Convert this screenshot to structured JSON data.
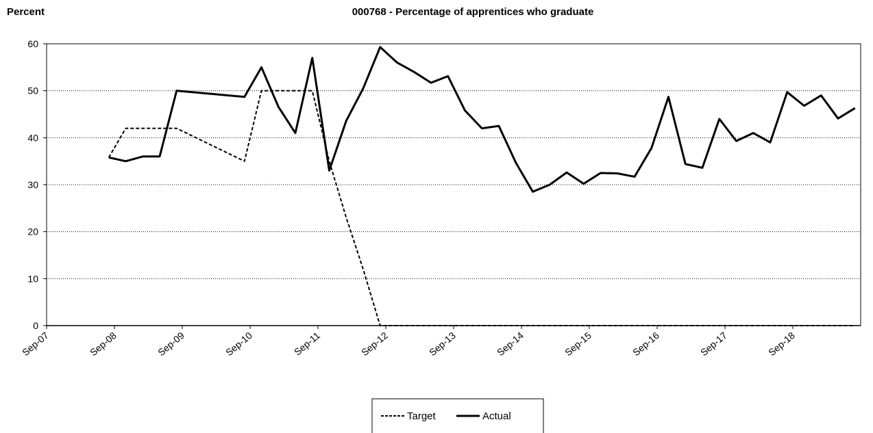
{
  "chart_data": {
    "type": "line",
    "title": "000768 - Percentage of apprentices who graduate",
    "y_label": "Percent",
    "x": [
      "2008-08",
      "2008-11",
      "2009-02",
      "2009-05",
      "2009-08",
      "2010-08",
      "2010-11",
      "2011-02",
      "2011-05",
      "2011-08",
      "2011-11",
      "2012-02",
      "2012-05",
      "2012-08",
      "2012-11",
      "2013-02",
      "2013-05",
      "2013-08",
      "2013-11",
      "2014-02",
      "2014-05",
      "2014-08",
      "2014-11",
      "2015-02",
      "2015-05",
      "2015-08",
      "2015-11",
      "2016-02",
      "2016-05",
      "2016-08",
      "2016-11",
      "2017-02",
      "2017-05",
      "2017-08",
      "2017-11",
      "2018-02",
      "2018-05",
      "2018-08",
      "2018-11",
      "2019-02",
      "2019-05",
      "2019-08"
    ],
    "series": [
      {
        "name": "Target",
        "color": "#000000",
        "line_style": "dashed",
        "values": [
          35.8,
          42,
          42,
          42,
          42,
          35,
          50,
          50,
          50,
          50,
          35,
          23,
          12,
          0,
          0,
          0,
          0,
          0,
          0,
          0,
          0,
          0,
          0,
          0,
          0,
          0,
          0,
          0,
          0,
          0,
          0,
          0,
          0,
          0,
          0,
          0,
          0,
          0,
          0,
          0,
          0,
          0
        ]
      },
      {
        "name": "Actual",
        "color": "#000000",
        "line_style": "solid",
        "values": [
          35.8,
          35,
          36,
          36,
          50,
          48.7,
          55,
          46.6,
          41,
          57,
          33,
          43.6,
          50.5,
          59.3,
          56,
          54,
          51.7,
          53.1,
          45.8,
          42,
          42.5,
          34.7,
          28.5,
          30,
          32.6,
          30.2,
          32.5,
          32.4,
          31.7,
          37.8,
          48.7,
          34.4,
          33.6,
          44,
          39.3,
          41,
          39,
          49.7,
          46.8,
          49,
          44.1,
          46.3
        ]
      }
    ],
    "xlim": [
      "2007-09",
      "2019-09"
    ],
    "xticks": [
      {
        "value": "2007-09",
        "label": "Sep-07"
      },
      {
        "value": "2008-09",
        "label": "Sep-08"
      },
      {
        "value": "2009-09",
        "label": "Sep-09"
      },
      {
        "value": "2010-09",
        "label": "Sep-10"
      },
      {
        "value": "2011-09",
        "label": "Sep-11"
      },
      {
        "value": "2012-09",
        "label": "Sep-12"
      },
      {
        "value": "2013-09",
        "label": "Sep-13"
      },
      {
        "value": "2014-09",
        "label": "Sep-14"
      },
      {
        "value": "2015-09",
        "label": "Sep-15"
      },
      {
        "value": "2016-09",
        "label": "Sep-16"
      },
      {
        "value": "2017-09",
        "label": "Sep-17"
      },
      {
        "value": "2018-09",
        "label": "Sep-18"
      }
    ],
    "ylim": [
      0,
      60
    ],
    "yticks": [
      0,
      10,
      20,
      30,
      40,
      50,
      60
    ],
    "grid": true,
    "legend": "bottom"
  }
}
